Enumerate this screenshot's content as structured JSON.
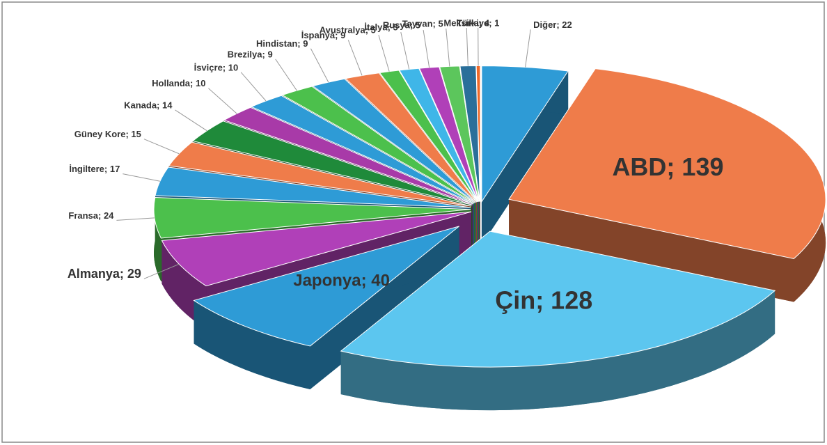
{
  "chart_data": {
    "type": "pie",
    "values": [
      22,
      139,
      128,
      40,
      29,
      24,
      17,
      15,
      14,
      10,
      10,
      9,
      9,
      9,
      5,
      5,
      5,
      5,
      4,
      1
    ],
    "value_labels": [
      "Diğer; 22",
      "ABD; 139",
      "Çin; 128",
      "Japonya; 40",
      "Almanya; 29",
      "Fransa; 24",
      "İngiltere; 17",
      "Güney Kore; 15",
      "Kanada; 14",
      "Hollanda; 10",
      "İsviçre; 10",
      "Brezilya; 9",
      "Hindistan; 9",
      "İspanya; 9",
      "Avustralya; 5",
      "İtalya; 5",
      "Rusya; 5",
      "Tayvan; 5",
      "Meksika; 4",
      "Türkiye; 1"
    ],
    "colors": [
      "#2e9bd6",
      "#ef7c4a",
      "#5cc6ef",
      "#2e9bd6",
      "#b040b8",
      "#4cc04c",
      "#2e9bd6",
      "#ef7c4a",
      "#1f8a3a",
      "#a83aa8",
      "#2e9bd6",
      "#4cc04c",
      "#2e9bd6",
      "#ef7c4a",
      "#4cc04c",
      "#3fb6e8",
      "#b040b8",
      "#5cc65c",
      "#2a6f9a",
      "#ef6a2a"
    ]
  }
}
